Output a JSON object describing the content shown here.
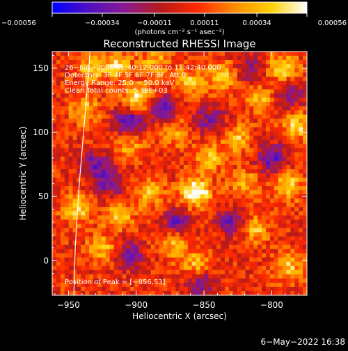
{
  "chart_data": {
    "type": "heatmap",
    "title": "Reconstructed RHESSI Image",
    "xlabel": "Heliocentric X (arcsec)",
    "ylabel": "Heliocentric Y (arcsec)",
    "xlim": [
      -962,
      -774
    ],
    "ylim": [
      -27,
      163
    ],
    "x_ticks": [
      -950,
      -900,
      -850,
      -800
    ],
    "y_ticks": [
      0,
      50,
      100,
      150
    ],
    "x_tick_labels": [
      "−950",
      "−900",
      "−850",
      "−800"
    ],
    "y_tick_labels": [
      "0",
      "50",
      "100",
      "150"
    ],
    "colorbar": {
      "range": [
        -0.00056,
        0.00056
      ],
      "ticks": [
        -0.00056,
        -0.00034,
        -0.00011,
        0.00011,
        0.00034,
        0.00056
      ],
      "tick_labels": [
        "−0.00056",
        "−0.00034",
        "−0.00011",
        "0.00011",
        "0.00034",
        "0.00056"
      ],
      "label": "(photons cm⁻² s⁻¹ asec⁻²)",
      "colors": [
        "#0000ff",
        "#5010c0",
        "#8a1a90",
        "#b81a1a",
        "#ff2a00",
        "#ff8c00",
        "#ffd000",
        "#ffffff"
      ]
    },
    "info_lines": [
      "26−Jun−2006 11:40:12.000 to 11:42:40.000",
      "Detectors: 3F 4F 5F 6F 7F 8F, Att 0",
      "Energy Range: 25.0 − 50.0 keV",
      "Clean     Total counts: 5.39E+03"
    ],
    "peak_text": "Position of Peak = [−856,53]",
    "peak": [
      -856,
      53
    ],
    "limb_curve": [
      [
        -946,
        -27
      ],
      [
        -945,
        10
      ],
      [
        -942,
        60
      ],
      [
        -938,
        110
      ],
      [
        -934,
        163
      ]
    ],
    "hotspots": [
      {
        "x": -856,
        "y": 53,
        "value": 1.0
      },
      {
        "x": -899,
        "y": 127,
        "value": 0.75
      },
      {
        "x": -938,
        "y": 118,
        "value": 0.55
      },
      {
        "x": -914,
        "y": 152,
        "value": 0.6
      },
      {
        "x": -860,
        "y": 138,
        "value": 0.55
      },
      {
        "x": -836,
        "y": 143,
        "value": 0.6
      },
      {
        "x": -792,
        "y": 150,
        "value": 0.7
      },
      {
        "x": -781,
        "y": 105,
        "value": 0.6
      },
      {
        "x": -788,
        "y": 58,
        "value": 0.65
      },
      {
        "x": -812,
        "y": 25,
        "value": 0.5
      },
      {
        "x": -788,
        "y": -5,
        "value": 0.55
      },
      {
        "x": -890,
        "y": 53,
        "value": 0.55
      },
      {
        "x": -912,
        "y": 35,
        "value": 0.55
      },
      {
        "x": -925,
        "y": 10,
        "value": 0.5
      },
      {
        "x": -944,
        "y": 40,
        "value": 0.6
      },
      {
        "x": -905,
        "y": 90,
        "value": 0.45
      },
      {
        "x": -873,
        "y": 100,
        "value": 0.45
      },
      {
        "x": -846,
        "y": 80,
        "value": 0.5
      },
      {
        "x": -826,
        "y": 95,
        "value": 0.55
      },
      {
        "x": -872,
        "y": 12,
        "value": 0.5
      },
      {
        "x": -856,
        "y": -3,
        "value": 0.5
      },
      {
        "x": -808,
        "y": 125,
        "value": 0.45
      },
      {
        "x": -934,
        "y": 150,
        "value": 0.5
      },
      {
        "x": -886,
        "y": 155,
        "value": 0.45
      },
      {
        "x": -820,
        "y": 60,
        "value": 0.45
      }
    ],
    "coldspots": [
      {
        "x": -905,
        "y": 108,
        "value": -0.8
      },
      {
        "x": -880,
        "y": 118,
        "value": -0.6
      },
      {
        "x": -870,
        "y": 30,
        "value": -0.55
      },
      {
        "x": -905,
        "y": 5,
        "value": -0.5
      },
      {
        "x": -800,
        "y": 80,
        "value": -0.7
      },
      {
        "x": -830,
        "y": 30,
        "value": -0.6
      },
      {
        "x": -845,
        "y": 110,
        "value": -0.5
      },
      {
        "x": -930,
        "y": 75,
        "value": -0.55
      },
      {
        "x": -852,
        "y": -18,
        "value": -0.55
      },
      {
        "x": -816,
        "y": 150,
        "value": -0.45
      },
      {
        "x": -920,
        "y": 60,
        "value": -0.5
      },
      {
        "x": -787,
        "y": 130,
        "value": -0.5
      }
    ]
  },
  "footer": {
    "timestamp": "6−May−2022 16:38"
  }
}
